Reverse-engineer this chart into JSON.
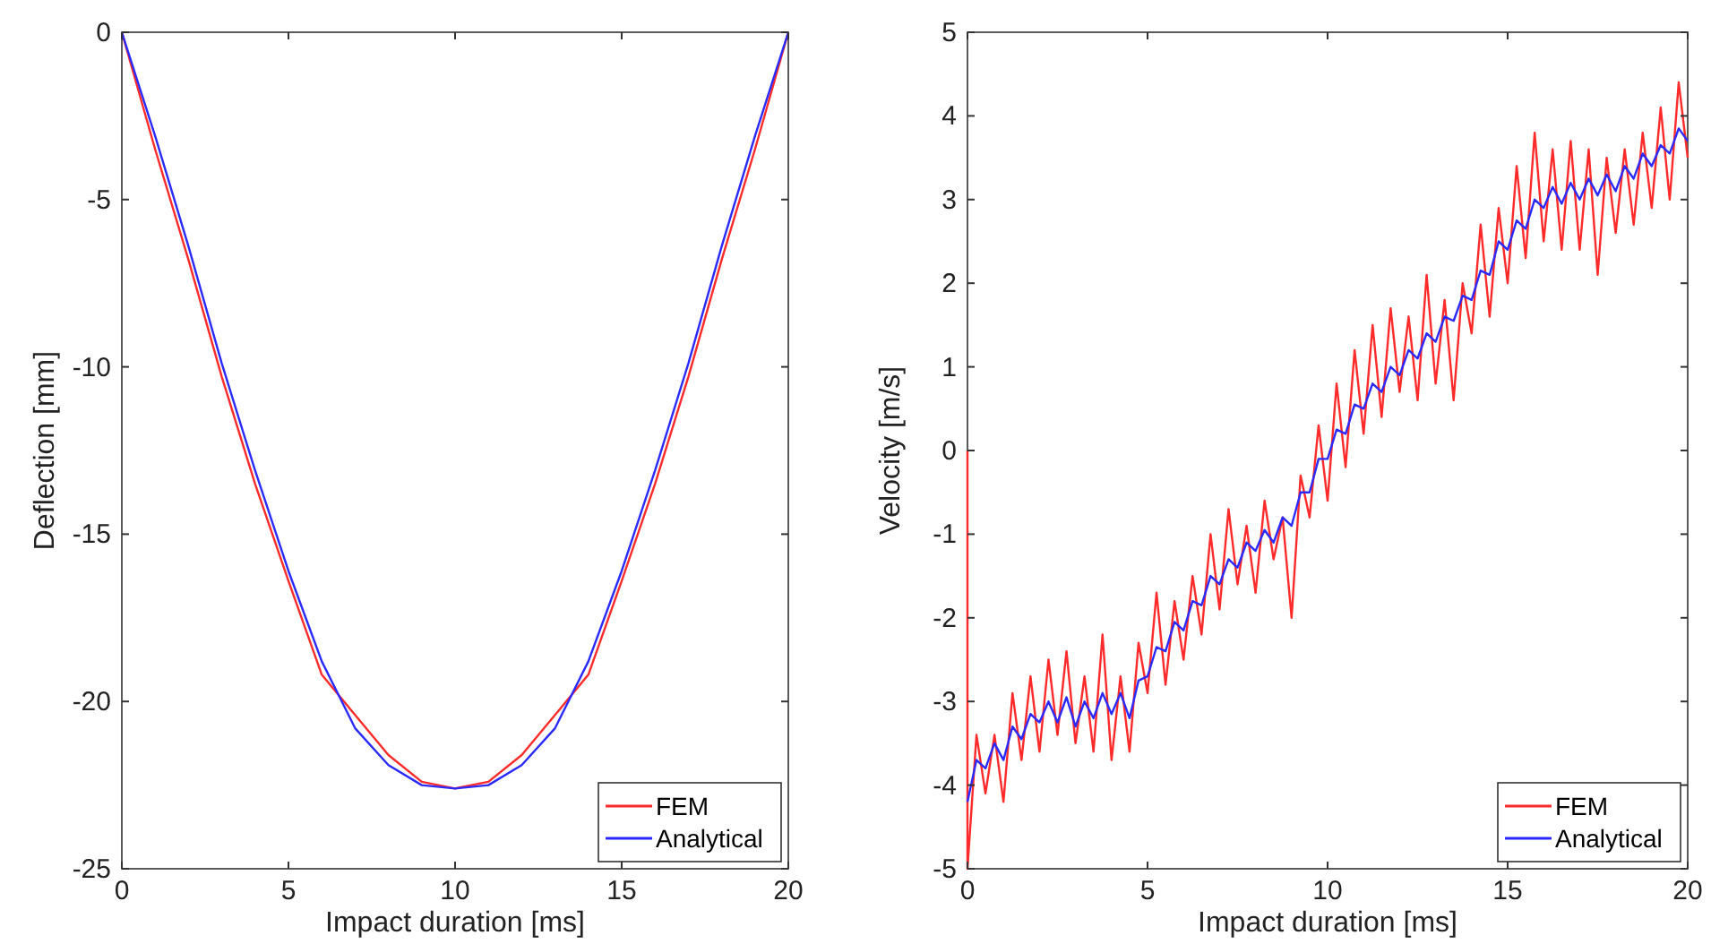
{
  "chart_data": [
    {
      "type": "line",
      "xlabel": "Impact duration [ms]",
      "ylabel": "Deflection [mm]",
      "xlim": [
        0,
        20
      ],
      "ylim": [
        -25,
        0
      ],
      "xticks": [
        0,
        5,
        10,
        15,
        20
      ],
      "yticks": [
        -25,
        -20,
        -15,
        -10,
        -5,
        0
      ],
      "legend": "bottom right",
      "x": [
        0,
        1,
        2,
        3,
        4,
        5,
        6,
        7,
        8,
        9,
        10,
        11,
        12,
        13,
        14,
        15,
        16,
        17,
        18,
        19,
        20
      ],
      "series": [
        {
          "name": "FEM",
          "color": "#ff2a2a",
          "values": [
            0,
            -3.5,
            -6.8,
            -10.3,
            -13.5,
            -16.4,
            -19.2,
            -20.4,
            -21.6,
            -22.4,
            -22.6,
            -22.4,
            -21.6,
            -20.4,
            -19.2,
            -16.4,
            -13.5,
            -10.3,
            -6.8,
            -3.5,
            0
          ]
        },
        {
          "name": "Analytical",
          "color": "#2a2aff",
          "values": [
            0,
            -3.1,
            -6.4,
            -9.9,
            -13.1,
            -16.1,
            -18.8,
            -20.8,
            -21.9,
            -22.5,
            -22.6,
            -22.5,
            -21.9,
            -20.8,
            -18.8,
            -16.1,
            -13.1,
            -9.9,
            -6.4,
            -3.1,
            0
          ]
        }
      ]
    },
    {
      "type": "line",
      "xlabel": "Impact duration [ms]",
      "ylabel": "Velocity [m/s]",
      "xlim": [
        0,
        20
      ],
      "ylim": [
        -5,
        5
      ],
      "xticks": [
        0,
        5,
        10,
        15,
        20
      ],
      "yticks": [
        -5,
        -4,
        -3,
        -2,
        -1,
        0,
        1,
        2,
        3,
        4,
        5
      ],
      "legend": "bottom right",
      "series": [
        {
          "name": "FEM",
          "color": "#ff2a2a",
          "x": [
            0,
            0,
            0.25,
            0.5,
            0.75,
            1,
            1.25,
            1.5,
            1.75,
            2,
            2.25,
            2.5,
            2.75,
            3,
            3.25,
            3.5,
            3.75,
            4,
            4.25,
            4.5,
            4.75,
            5,
            5.25,
            5.5,
            5.75,
            6,
            6.25,
            6.5,
            6.75,
            7,
            7.25,
            7.5,
            7.75,
            8,
            8.25,
            8.5,
            8.75,
            9,
            9.25,
            9.5,
            9.75,
            10,
            10.25,
            10.5,
            10.75,
            11,
            11.25,
            11.5,
            11.75,
            12,
            12.25,
            12.5,
            12.75,
            13,
            13.25,
            13.5,
            13.75,
            14,
            14.25,
            14.5,
            14.75,
            15,
            15.25,
            15.5,
            15.75,
            16,
            16.25,
            16.5,
            16.75,
            17,
            17.25,
            17.5,
            17.75,
            18,
            18.25,
            18.5,
            18.75,
            19,
            19.25,
            19.5,
            19.75,
            20
          ],
          "values": [
            0,
            -5,
            -3.4,
            -4.1,
            -3.4,
            -4.2,
            -2.9,
            -3.7,
            -2.7,
            -3.6,
            -2.5,
            -3.4,
            -2.4,
            -3.5,
            -2.7,
            -3.6,
            -2.2,
            -3.7,
            -2.7,
            -3.6,
            -2.3,
            -2.9,
            -1.7,
            -2.8,
            -1.8,
            -2.5,
            -1.5,
            -2.2,
            -1.0,
            -1.9,
            -0.7,
            -1.6,
            -0.9,
            -1.7,
            -0.6,
            -1.3,
            -0.8,
            -2.0,
            -0.3,
            -0.8,
            0.3,
            -0.6,
            0.8,
            -0.2,
            1.2,
            0.2,
            1.5,
            0.4,
            1.7,
            0.7,
            1.6,
            0.6,
            2.1,
            0.8,
            1.8,
            0.6,
            2.0,
            1.4,
            2.7,
            1.6,
            2.9,
            2.0,
            3.4,
            2.3,
            3.8,
            2.5,
            3.6,
            2.4,
            3.7,
            2.4,
            3.6,
            2.1,
            3.5,
            2.6,
            3.6,
            2.7,
            3.8,
            2.9,
            4.1,
            3.0,
            4.4,
            3.5
          ]
        },
        {
          "name": "Analytical",
          "color": "#2a2aff",
          "x": [
            0,
            0.25,
            0.5,
            0.75,
            1,
            1.25,
            1.5,
            1.75,
            2,
            2.25,
            2.5,
            2.75,
            3,
            3.25,
            3.5,
            3.75,
            4,
            4.25,
            4.5,
            4.75,
            5,
            5.25,
            5.5,
            5.75,
            6,
            6.25,
            6.5,
            6.75,
            7,
            7.25,
            7.5,
            7.75,
            8,
            8.25,
            8.5,
            8.75,
            9,
            9.25,
            9.5,
            9.75,
            10,
            10.25,
            10.5,
            10.75,
            11,
            11.25,
            11.5,
            11.75,
            12,
            12.25,
            12.5,
            12.75,
            13,
            13.25,
            13.5,
            13.75,
            14,
            14.25,
            14.5,
            14.75,
            15,
            15.25,
            15.5,
            15.75,
            16,
            16.25,
            16.5,
            16.75,
            17,
            17.25,
            17.5,
            17.75,
            18,
            18.25,
            18.5,
            18.75,
            19,
            19.25,
            19.5,
            19.75,
            20
          ],
          "values": [
            -4.2,
            -3.7,
            -3.8,
            -3.5,
            -3.7,
            -3.3,
            -3.45,
            -3.15,
            -3.25,
            -3.0,
            -3.25,
            -2.95,
            -3.3,
            -3.0,
            -3.2,
            -2.9,
            -3.15,
            -2.9,
            -3.2,
            -2.75,
            -2.7,
            -2.35,
            -2.4,
            -2.05,
            -2.15,
            -1.8,
            -1.85,
            -1.5,
            -1.6,
            -1.3,
            -1.4,
            -1.1,
            -1.2,
            -0.95,
            -1.1,
            -0.8,
            -0.9,
            -0.5,
            -0.5,
            -0.1,
            -0.1,
            0.25,
            0.2,
            0.55,
            0.5,
            0.8,
            0.7,
            1.0,
            0.9,
            1.2,
            1.1,
            1.4,
            1.3,
            1.6,
            1.55,
            1.85,
            1.8,
            2.15,
            2.1,
            2.5,
            2.4,
            2.75,
            2.65,
            3.0,
            2.9,
            3.15,
            2.95,
            3.2,
            3.0,
            3.25,
            3.05,
            3.3,
            3.1,
            3.4,
            3.25,
            3.55,
            3.4,
            3.65,
            3.55,
            3.85,
            3.7
          ]
        }
      ]
    }
  ]
}
